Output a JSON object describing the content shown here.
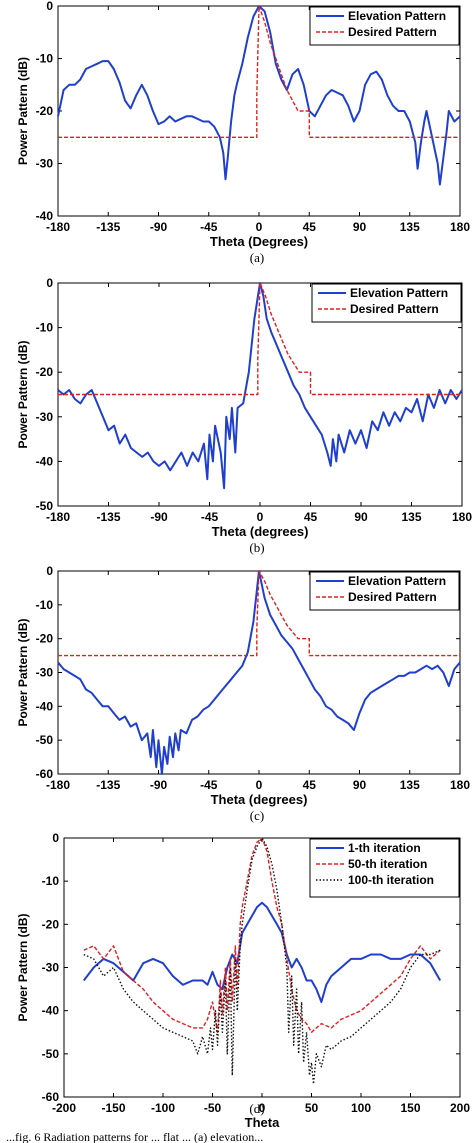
{
  "figure_caption_partial": "...fig. 6 Radiation patterns for ... flat ... (a) elevation...",
  "chart_data": [
    {
      "type": "line",
      "caption": "(a)",
      "xlabel": "Theta (Degrees)",
      "ylabel": "Power Pattern (dB)",
      "xlim": [
        -180,
        180
      ],
      "ylim": [
        -40,
        0
      ],
      "xticks": [
        "-180",
        "-135",
        "-90",
        "-45",
        "0",
        "45",
        "90",
        "135",
        "180"
      ],
      "yticks": [
        "0",
        "-10",
        "-20",
        "-30",
        "-40"
      ],
      "legend_position": "top-right",
      "series": [
        {
          "name": "Elevation Pattern",
          "color": "#1f3fcf",
          "style": "solid",
          "x": [
            -180,
            -175,
            -170,
            -165,
            -160,
            -155,
            -150,
            -145,
            -140,
            -135,
            -130,
            -125,
            -120,
            -115,
            -110,
            -105,
            -100,
            -95,
            -90,
            -85,
            -80,
            -75,
            -70,
            -65,
            -60,
            -55,
            -50,
            -45,
            -40,
            -35,
            -32,
            -30,
            -28,
            -25,
            -22,
            -20,
            -15,
            -10,
            -5,
            0,
            5,
            10,
            15,
            20,
            25,
            30,
            35,
            40,
            45,
            50,
            55,
            60,
            65,
            70,
            75,
            80,
            85,
            90,
            95,
            100,
            105,
            110,
            115,
            120,
            125,
            130,
            135,
            140,
            142,
            145,
            148,
            150,
            155,
            160,
            162,
            165,
            168,
            170,
            175,
            180
          ],
          "y": [
            -21,
            -16,
            -15,
            -15,
            -14,
            -12,
            -11.5,
            -11,
            -10.5,
            -10.5,
            -12,
            -14.5,
            -18,
            -19.5,
            -17,
            -15,
            -17,
            -20,
            -22.5,
            -22,
            -21,
            -22,
            -21.5,
            -21,
            -21,
            -21.5,
            -22,
            -22,
            -23,
            -25,
            -28,
            -33,
            -29,
            -22,
            -17,
            -15,
            -11,
            -6,
            -2,
            0,
            -1,
            -5,
            -11,
            -14,
            -16,
            -13,
            -12,
            -15,
            -20,
            -21,
            -19,
            -17,
            -16,
            -16.5,
            -17,
            -19,
            -22,
            -20,
            -15,
            -13,
            -12.5,
            -14,
            -17,
            -19,
            -20,
            -20,
            -22,
            -26,
            -31,
            -26,
            -22,
            -20,
            -25,
            -30,
            -34,
            -29,
            -24,
            -20,
            -22,
            -21
          ]
        },
        {
          "name": "Desired Pattern",
          "color": "#e02020",
          "style": "dashed",
          "x": [
            -180,
            -2,
            -2,
            0,
            5,
            10,
            15,
            20,
            25,
            30,
            35,
            42,
            42,
            45,
            45,
            180
          ],
          "y": [
            -25,
            -25,
            -17,
            0,
            -3,
            -7,
            -10,
            -13,
            -16,
            -18,
            -20,
            -20,
            -20,
            -20,
            -25,
            -25
          ]
        }
      ]
    },
    {
      "type": "line",
      "caption": "(b)",
      "xlabel": "Theta (degrees)",
      "ylabel": "Power Pattern (dB)",
      "xlim": [
        -180,
        180
      ],
      "ylim": [
        -50,
        0
      ],
      "xticks": [
        "-180",
        "-135",
        "-90",
        "-45",
        "0",
        "45",
        "90",
        "135",
        "180"
      ],
      "yticks": [
        "0",
        "-10",
        "-20",
        "-30",
        "-40",
        "-50"
      ],
      "legend_position": "top-right",
      "series": [
        {
          "name": "Elevation Pattern",
          "color": "#1f3fcf",
          "style": "solid",
          "x": [
            -180,
            -175,
            -170,
            -165,
            -160,
            -155,
            -150,
            -145,
            -140,
            -135,
            -130,
            -125,
            -120,
            -115,
            -110,
            -105,
            -100,
            -95,
            -90,
            -85,
            -80,
            -75,
            -70,
            -65,
            -60,
            -55,
            -50,
            -47,
            -45,
            -42,
            -40,
            -35,
            -32,
            -30,
            -27,
            -25,
            -22,
            -20,
            -15,
            -10,
            -5,
            0,
            3,
            6,
            10,
            15,
            20,
            25,
            30,
            35,
            40,
            45,
            50,
            55,
            60,
            63,
            65,
            68,
            70,
            75,
            80,
            85,
            90,
            95,
            100,
            105,
            110,
            115,
            120,
            125,
            130,
            135,
            140,
            145,
            150,
            155,
            160,
            165,
            170,
            175,
            180
          ],
          "y": [
            -24,
            -25,
            -24,
            -26,
            -27,
            -25,
            -24,
            -27,
            -30,
            -33,
            -32,
            -36,
            -34,
            -37,
            -38,
            -39,
            -38,
            -40,
            -41,
            -40,
            -42,
            -40,
            -38,
            -41,
            -38,
            -40,
            -36,
            -44,
            -34,
            -40,
            -32,
            -38,
            -46,
            -30,
            -35,
            -28,
            -38,
            -28,
            -27,
            -20,
            -8,
            0,
            -3,
            -8,
            -11,
            -14,
            -17,
            -20,
            -23,
            -25,
            -28,
            -30,
            -32,
            -34,
            -38,
            -41,
            -35,
            -40,
            -34,
            -38,
            -33,
            -36,
            -33,
            -37,
            -31,
            -33,
            -29,
            -32,
            -29,
            -31,
            -28,
            -29,
            -26,
            -31,
            -25,
            -28,
            -24,
            -27,
            -24,
            -26,
            -24
          ]
        },
        {
          "name": "Desired Pattern",
          "color": "#e02020",
          "style": "dashed",
          "x": [
            -180,
            -2,
            -2,
            0,
            5,
            10,
            15,
            20,
            25,
            30,
            35,
            42,
            42,
            45,
            45,
            180
          ],
          "y": [
            -25,
            -25,
            -17,
            0,
            -3,
            -7,
            -10,
            -13,
            -16,
            -18,
            -20,
            -20,
            -20,
            -20,
            -25,
            -25
          ]
        }
      ]
    },
    {
      "type": "line",
      "caption": "(c)",
      "xlabel": "Theta (degrees)",
      "ylabel": "Power Pattern (dB)",
      "xlim": [
        -180,
        180
      ],
      "ylim": [
        -60,
        0
      ],
      "xticks": [
        "-180",
        "-135",
        "-90",
        "-45",
        "0",
        "45",
        "90",
        "135",
        "180"
      ],
      "yticks": [
        "0",
        "-10",
        "-20",
        "-30",
        "-40",
        "-50",
        "-60"
      ],
      "legend_position": "top-right",
      "series": [
        {
          "name": "Elevation Pattern",
          "color": "#1f3fcf",
          "style": "solid",
          "x": [
            -180,
            -175,
            -170,
            -165,
            -160,
            -155,
            -150,
            -145,
            -140,
            -135,
            -130,
            -125,
            -120,
            -115,
            -110,
            -105,
            -100,
            -97,
            -95,
            -92,
            -90,
            -87,
            -85,
            -82,
            -80,
            -77,
            -75,
            -72,
            -70,
            -65,
            -60,
            -55,
            -50,
            -45,
            -40,
            -35,
            -30,
            -25,
            -20,
            -15,
            -10,
            -5,
            0,
            5,
            10,
            15,
            20,
            25,
            30,
            35,
            40,
            45,
            50,
            55,
            60,
            65,
            70,
            75,
            80,
            85,
            90,
            95,
            100,
            105,
            110,
            115,
            120,
            125,
            130,
            135,
            140,
            145,
            150,
            155,
            160,
            165,
            170,
            175,
            180
          ],
          "y": [
            -27,
            -29,
            -30,
            -31,
            -32,
            -35,
            -36,
            -38,
            -40,
            -40,
            -42,
            -44,
            -43,
            -46,
            -45,
            -50,
            -48,
            -55,
            -47,
            -58,
            -50,
            -60,
            -52,
            -57,
            -49,
            -55,
            -48,
            -53,
            -47,
            -48,
            -44,
            -43,
            -41,
            -40,
            -38,
            -36,
            -34,
            -32,
            -30,
            -28,
            -24,
            -15,
            0,
            -8,
            -13,
            -16,
            -19,
            -21,
            -23,
            -26,
            -29,
            -32,
            -35,
            -37,
            -40,
            -41,
            -43,
            -44,
            -45,
            -47,
            -42,
            -38,
            -36,
            -35,
            -34,
            -33,
            -32,
            -31,
            -31,
            -30,
            -30,
            -29,
            -28,
            -29,
            -28,
            -30,
            -34,
            -29,
            -27
          ]
        },
        {
          "name": "Desired Pattern",
          "color": "#e02020",
          "style": "dashed",
          "x": [
            -180,
            -2,
            -2,
            0,
            5,
            10,
            15,
            20,
            25,
            30,
            35,
            42,
            42,
            45,
            45,
            180
          ],
          "y": [
            -25,
            -25,
            -17,
            0,
            -3,
            -7,
            -10,
            -13,
            -16,
            -18,
            -20,
            -20,
            -20,
            -20,
            -25,
            -25
          ]
        }
      ]
    },
    {
      "type": "line",
      "caption": "(d)",
      "xlabel": "Theta",
      "ylabel": "Power Pattern (dB)",
      "xlim": [
        -200,
        200
      ],
      "ylim": [
        -60,
        0
      ],
      "xticks": [
        "-200",
        "-150",
        "-100",
        "-50",
        "0",
        "50",
        "100",
        "150",
        "200"
      ],
      "yticks": [
        "0",
        "-10",
        "-20",
        "-30",
        "-40",
        "-50",
        "-60"
      ],
      "legend_position": "top-right",
      "series": [
        {
          "name": "1-th iteration",
          "color": "#1f3fcf",
          "style": "solid",
          "x": [
            -180,
            -170,
            -160,
            -150,
            -140,
            -130,
            -120,
            -110,
            -100,
            -90,
            -80,
            -70,
            -60,
            -55,
            -50,
            -45,
            -40,
            -35,
            -30,
            -25,
            -20,
            -15,
            -10,
            -5,
            0,
            5,
            10,
            15,
            20,
            25,
            30,
            35,
            40,
            45,
            50,
            55,
            60,
            65,
            70,
            80,
            90,
            100,
            110,
            120,
            130,
            140,
            150,
            160,
            170,
            180
          ],
          "y": [
            -33,
            -30,
            -28,
            -29,
            -31,
            -33,
            -29,
            -28,
            -29,
            -32,
            -34,
            -33,
            -33,
            -34,
            -31,
            -34,
            -35,
            -30,
            -27,
            -29,
            -22,
            -20,
            -18,
            -16,
            -15,
            -16,
            -18,
            -20,
            -22,
            -27,
            -30,
            -28,
            -30,
            -33,
            -33,
            -35,
            -38,
            -34,
            -32,
            -30,
            -28,
            -28,
            -27,
            -27,
            -28,
            -28,
            -27,
            -27,
            -29,
            -33
          ]
        },
        {
          "name": "50-th iteration",
          "color": "#e02020",
          "style": "dashed",
          "x": [
            -180,
            -170,
            -160,
            -150,
            -140,
            -130,
            -120,
            -110,
            -100,
            -90,
            -80,
            -70,
            -60,
            -55,
            -50,
            -45,
            -42,
            -40,
            -37,
            -35,
            -32,
            -30,
            -27,
            -25,
            -22,
            -20,
            -15,
            -10,
            -5,
            0,
            5,
            10,
            15,
            20,
            25,
            30,
            35,
            40,
            45,
            50,
            55,
            60,
            70,
            80,
            90,
            100,
            110,
            120,
            130,
            140,
            150,
            160,
            170,
            180
          ],
          "y": [
            -26,
            -25,
            -28,
            -25,
            -31,
            -33,
            -35,
            -38,
            -40,
            -42,
            -43,
            -44,
            -44,
            -42,
            -38,
            -45,
            -33,
            -41,
            -30,
            -40,
            -28,
            -38,
            -25,
            -35,
            -20,
            -16,
            -10,
            -4,
            -1,
            0,
            -3,
            -10,
            -16,
            -20,
            -28,
            -35,
            -40,
            -42,
            -43,
            -45,
            -44,
            -43,
            -44,
            -42,
            -41,
            -40,
            -38,
            -36,
            -34,
            -32,
            -28,
            -25,
            -28,
            -26
          ]
        },
        {
          "name": "100-th iteration",
          "color": "#111111",
          "style": "dotted",
          "x": [
            -180,
            -170,
            -160,
            -150,
            -140,
            -130,
            -120,
            -110,
            -100,
            -90,
            -80,
            -70,
            -65,
            -60,
            -55,
            -52,
            -50,
            -47,
            -45,
            -42,
            -40,
            -37,
            -35,
            -32,
            -30,
            -27,
            -25,
            -22,
            -20,
            -15,
            -10,
            -5,
            0,
            5,
            10,
            15,
            20,
            25,
            27,
            30,
            32,
            35,
            37,
            40,
            42,
            45,
            48,
            50,
            52,
            55,
            60,
            65,
            70,
            80,
            90,
            100,
            110,
            120,
            130,
            140,
            150,
            160,
            170,
            180
          ],
          "y": [
            -27,
            -28,
            -32,
            -30,
            -35,
            -38,
            -40,
            -42,
            -44,
            -45,
            -46,
            -47,
            -50,
            -46,
            -50,
            -44,
            -49,
            -40,
            -48,
            -36,
            -45,
            -33,
            -50,
            -30,
            -55,
            -28,
            -40,
            -25,
            -20,
            -12,
            -5,
            -2,
            0,
            -2,
            -6,
            -12,
            -20,
            -30,
            -45,
            -32,
            -48,
            -35,
            -50,
            -38,
            -52,
            -45,
            -55,
            -52,
            -57,
            -50,
            -53,
            -48,
            -49,
            -47,
            -46,
            -44,
            -42,
            -40,
            -38,
            -35,
            -30,
            -27,
            -27,
            -26
          ]
        }
      ]
    }
  ]
}
